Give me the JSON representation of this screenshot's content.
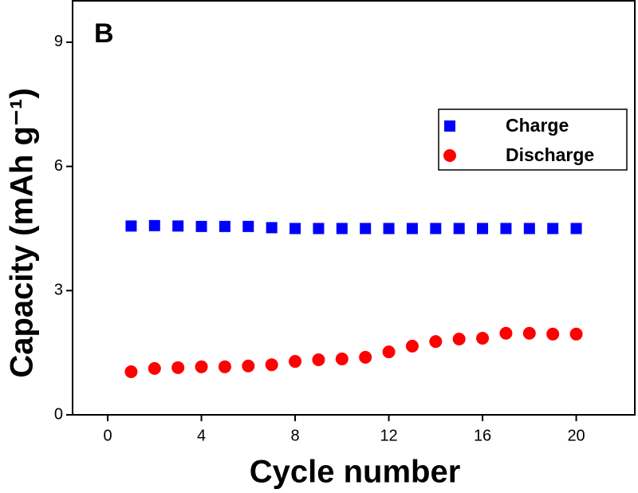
{
  "chart_data": {
    "type": "scatter",
    "annotation": "B",
    "x_label": "Cycle number",
    "y_label": "Capacity (mAh g⁻¹)",
    "x": [
      1,
      2,
      3,
      4,
      5,
      6,
      7,
      8,
      9,
      10,
      11,
      12,
      13,
      14,
      15,
      16,
      17,
      18,
      19,
      20
    ],
    "series": [
      {
        "name": "Charge",
        "color": "#0000ff",
        "marker": "square",
        "values": [
          4.56,
          4.57,
          4.56,
          4.55,
          4.55,
          4.55,
          4.52,
          4.5,
          4.5,
          4.5,
          4.5,
          4.5,
          4.5,
          4.5,
          4.5,
          4.5,
          4.5,
          4.5,
          4.5,
          4.5
        ]
      },
      {
        "name": "Discharge",
        "color": "#ff0000",
        "marker": "circle",
        "values": [
          1.04,
          1.12,
          1.14,
          1.16,
          1.16,
          1.18,
          1.21,
          1.29,
          1.33,
          1.35,
          1.39,
          1.52,
          1.66,
          1.77,
          1.83,
          1.85,
          1.97,
          1.97,
          1.95,
          1.95
        ]
      }
    ],
    "xlim": [
      -1.5,
      22.5
    ],
    "xticks": [
      0,
      4,
      8,
      12,
      16,
      20
    ],
    "ylim": [
      0,
      10
    ],
    "yticks": [
      0,
      3,
      6,
      9
    ],
    "grid": false,
    "legend": "upper right"
  }
}
